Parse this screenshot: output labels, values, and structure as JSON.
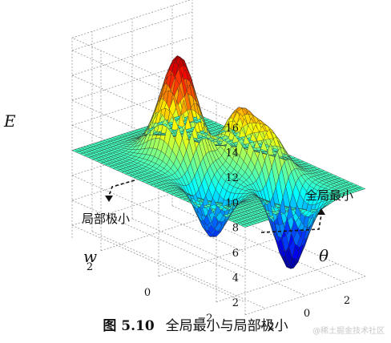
{
  "chart_data": {
    "type": "surface3d",
    "zlabel": "E",
    "xlabel": "θ",
    "ylabel": "w",
    "z_ticks": [
      "2",
      "4",
      "6",
      "8",
      "10",
      "12",
      "14",
      "16"
    ],
    "x_ticks": [
      "−2",
      "0",
      "2"
    ],
    "y_ticks": [
      "2",
      "0",
      "−2"
    ],
    "zlim": [
      1,
      17
    ],
    "xlim": [
      -3,
      3
    ],
    "ylim": [
      -3,
      3
    ],
    "baseline": 8,
    "grid": true,
    "annotations": [
      {
        "text": "局部极小",
        "points_to": "local-minimum"
      },
      {
        "text": "全局最小",
        "points_to": "global-minimum"
      }
    ]
  },
  "caption": {
    "label": "图 5.10",
    "text": "全局最小与局部极小"
  },
  "watermark": "@稀土掘金技术社区"
}
